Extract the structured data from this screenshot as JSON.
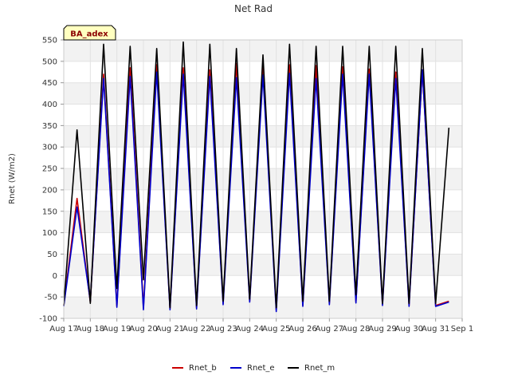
{
  "chart_data": {
    "type": "line",
    "title": "Net Rad",
    "xlabel": "",
    "ylabel": "Rnet (W/m2)",
    "badge": "BA_adex",
    "xlim": [
      "Aug 17",
      "Sep 1"
    ],
    "ylim": [
      -100,
      550
    ],
    "x_ticks": [
      "Aug 17",
      "Aug 18",
      "Aug 19",
      "Aug 20",
      "Aug 21",
      "Aug 22",
      "Aug 23",
      "Aug 24",
      "Aug 25",
      "Aug 26",
      "Aug 27",
      "Aug 28",
      "Aug 29",
      "Aug 30",
      "Aug 31",
      "Sep 1"
    ],
    "y_ticks": [
      -100,
      -50,
      0,
      50,
      100,
      150,
      200,
      250,
      300,
      350,
      400,
      450,
      500,
      550
    ],
    "grid": true,
    "legend_position": "bottom-center",
    "series_colors": {
      "Rnet_b": "#cc0000",
      "Rnet_e": "#0000cc",
      "Rnet_m": "#000000"
    },
    "series": [
      {
        "name": "Rnet_b",
        "x": [
          "Aug 17 00:00",
          "Aug 17 12:00",
          "Aug 18 00:00",
          "Aug 18 12:00",
          "Aug 19 00:00",
          "Aug 19 12:00",
          "Aug 20 00:00",
          "Aug 20 12:00",
          "Aug 21 00:00",
          "Aug 21 12:00",
          "Aug 22 00:00",
          "Aug 22 12:00",
          "Aug 23 00:00",
          "Aug 23 12:00",
          "Aug 24 00:00",
          "Aug 24 12:00",
          "Aug 25 00:00",
          "Aug 25 12:00",
          "Aug 26 00:00",
          "Aug 26 12:00",
          "Aug 27 00:00",
          "Aug 27 12:00",
          "Aug 28 00:00",
          "Aug 28 12:00",
          "Aug 29 00:00",
          "Aug 29 12:00",
          "Aug 30 00:00",
          "Aug 30 12:00",
          "Aug 31 00:00",
          "Aug 31 12:00"
        ],
        "values": [
          -70,
          180,
          -62,
          470,
          -72,
          485,
          -75,
          492,
          -78,
          485,
          -75,
          480,
          -65,
          495,
          -60,
          488,
          -80,
          492,
          -70,
          490,
          -65,
          487,
          -62,
          482,
          -68,
          475,
          -70,
          480,
          -70,
          -60
        ]
      },
      {
        "name": "Rnet_e",
        "x": [
          "Aug 17 00:00",
          "Aug 17 12:00",
          "Aug 18 00:00",
          "Aug 18 12:00",
          "Aug 19 00:00",
          "Aug 19 12:00",
          "Aug 20 00:00",
          "Aug 20 12:00",
          "Aug 21 00:00",
          "Aug 21 12:00",
          "Aug 22 00:00",
          "Aug 22 12:00",
          "Aug 23 00:00",
          "Aug 23 12:00",
          "Aug 24 00:00",
          "Aug 24 12:00",
          "Aug 25 00:00",
          "Aug 25 12:00",
          "Aug 26 00:00",
          "Aug 26 12:00",
          "Aug 27 00:00",
          "Aug 27 12:00",
          "Aug 28 00:00",
          "Aug 28 12:00",
          "Aug 29 00:00",
          "Aug 29 12:00",
          "Aug 30 00:00",
          "Aug 30 12:00",
          "Aug 31 00:00",
          "Aug 31 12:00"
        ],
        "values": [
          -72,
          160,
          -60,
          460,
          -74,
          465,
          -80,
          475,
          -80,
          470,
          -78,
          465,
          -68,
          462,
          -62,
          468,
          -84,
          472,
          -72,
          460,
          -68,
          470,
          -64,
          470,
          -70,
          460,
          -72,
          480,
          -72,
          -62
        ]
      },
      {
        "name": "Rnet_m",
        "x": [
          "Aug 17 00:00",
          "Aug 17 12:00",
          "Aug 18 00:00",
          "Aug 18 12:00",
          "Aug 19 00:00",
          "Aug 19 12:00",
          "Aug 20 00:00",
          "Aug 20 12:00",
          "Aug 21 00:00",
          "Aug 21 12:00",
          "Aug 22 00:00",
          "Aug 22 12:00",
          "Aug 23 00:00",
          "Aug 23 12:00",
          "Aug 24 00:00",
          "Aug 24 12:00",
          "Aug 25 00:00",
          "Aug 25 12:00",
          "Aug 26 00:00",
          "Aug 26 12:00",
          "Aug 27 00:00",
          "Aug 27 12:00",
          "Aug 28 00:00",
          "Aug 28 12:00",
          "Aug 29 00:00",
          "Aug 29 12:00",
          "Aug 30 00:00",
          "Aug 30 12:00",
          "Aug 31 00:00",
          "Aug 31 12:00"
        ],
        "values": [
          -70,
          340,
          -65,
          540,
          -30,
          535,
          -10,
          530,
          -75,
          545,
          -70,
          540,
          -60,
          530,
          -55,
          515,
          -75,
          540,
          -60,
          535,
          -60,
          535,
          -45,
          535,
          -65,
          535,
          -65,
          530,
          -65,
          345
        ]
      }
    ]
  }
}
